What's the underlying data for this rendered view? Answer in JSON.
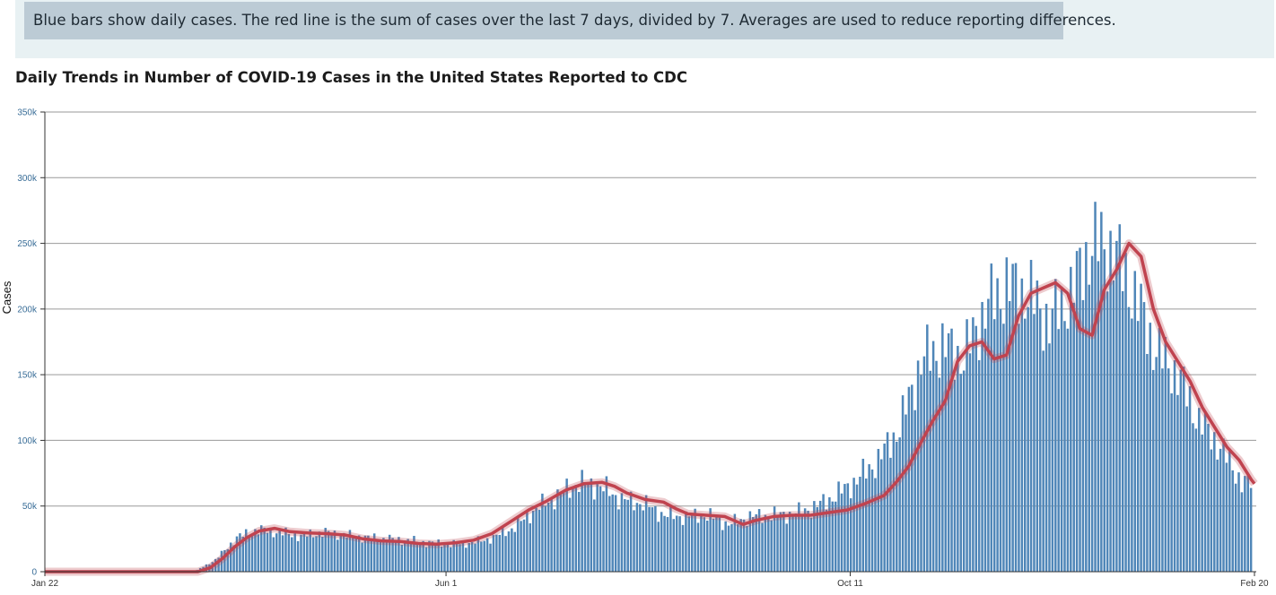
{
  "note": "Blue bars show daily cases. The red line is the sum of cases over the last 7 days, divided by 7. Averages are used to reduce reporting differences.",
  "colors": {
    "bar": "#4f86b8",
    "average_line": "#c0434f",
    "gridline": "#9a9a9a",
    "note_bg": "#bccbd5",
    "band_bg": "#e8f1f3"
  },
  "chart_data": {
    "type": "bar",
    "title": "Daily Trends in Number of COVID-19 Cases in the United States Reported to CDC",
    "ylabel": "Cases",
    "xlabel": "",
    "ylim": [
      0,
      350000
    ],
    "y_ticks": [
      "0",
      "50k",
      "100k",
      "150k",
      "200k",
      "250k",
      "300k",
      "350k"
    ],
    "x_tick_labels": [
      "Jan 22",
      "Jun 1",
      "Oct 11",
      "Feb 20"
    ],
    "x_tick_days": [
      0,
      131,
      263,
      395
    ],
    "grid": true,
    "series": [
      {
        "kind": "bar",
        "sampling": "weekly (every 7th day from Jan 22), estimated",
        "day": [
          0,
          7,
          14,
          21,
          28,
          35,
          42,
          49,
          56,
          63,
          70,
          77,
          84,
          91,
          98,
          105,
          112,
          119,
          126,
          133,
          140,
          147,
          154,
          161,
          168,
          175,
          182,
          189,
          196,
          203,
          210,
          217,
          224,
          231,
          238,
          245,
          252,
          259,
          266,
          273,
          280,
          287,
          294,
          301,
          308,
          315,
          322,
          329,
          336,
          343,
          350,
          357,
          364,
          371,
          378,
          385,
          392,
          395
        ],
        "values": [
          0,
          0,
          0,
          0,
          0,
          0,
          0,
          0,
          9000,
          26000,
          32000,
          30000,
          27000,
          30000,
          28000,
          26000,
          25000,
          24000,
          22000,
          21000,
          22000,
          26000,
          34000,
          48000,
          58000,
          68000,
          65000,
          55000,
          52000,
          43000,
          42000,
          43000,
          36000,
          42000,
          43000,
          44000,
          49000,
          58000,
          70000,
          85000,
          110000,
          160000,
          172000,
          163000,
          200000,
          218000,
          212000,
          190000,
          212000,
          250000,
          245000,
          210000,
          168000,
          150000,
          115000,
          95000,
          68000,
          68000
        ]
      },
      {
        "kind": "line",
        "sampling": "7-day average, estimated",
        "day": [
          0,
          50,
          54,
          58,
          62,
          66,
          70,
          75,
          80,
          86,
          92,
          98,
          104,
          110,
          116,
          122,
          128,
          134,
          140,
          146,
          152,
          158,
          164,
          170,
          176,
          182,
          186,
          190,
          196,
          202,
          206,
          210,
          216,
          222,
          228,
          232,
          238,
          244,
          250,
          256,
          262,
          268,
          274,
          278,
          282,
          286,
          290,
          294,
          298,
          302,
          306,
          310,
          314,
          318,
          322,
          326,
          330,
          334,
          338,
          342,
          346,
          350,
          354,
          358,
          362,
          366,
          370,
          374,
          378,
          382,
          386,
          390,
          394,
          395
        ],
        "values": [
          0,
          0,
          3000,
          10000,
          19000,
          26000,
          31000,
          33000,
          30500,
          29500,
          29000,
          28000,
          25000,
          23500,
          23000,
          21500,
          21000,
          22000,
          24000,
          29000,
          38000,
          47000,
          54000,
          62000,
          67000,
          68000,
          65000,
          60000,
          55000,
          53000,
          48000,
          44000,
          43000,
          42000,
          36000,
          39000,
          42000,
          43000,
          43000,
          45000,
          47000,
          52000,
          58000,
          68000,
          80000,
          98000,
          115000,
          130000,
          160000,
          172000,
          175000,
          162000,
          165000,
          195000,
          212000,
          216000,
          220000,
          212000,
          185000,
          180000,
          215000,
          230000,
          250000,
          240000,
          200000,
          175000,
          160000,
          145000,
          125000,
          110000,
          95000,
          85000,
          70000,
          67000
        ]
      }
    ]
  }
}
